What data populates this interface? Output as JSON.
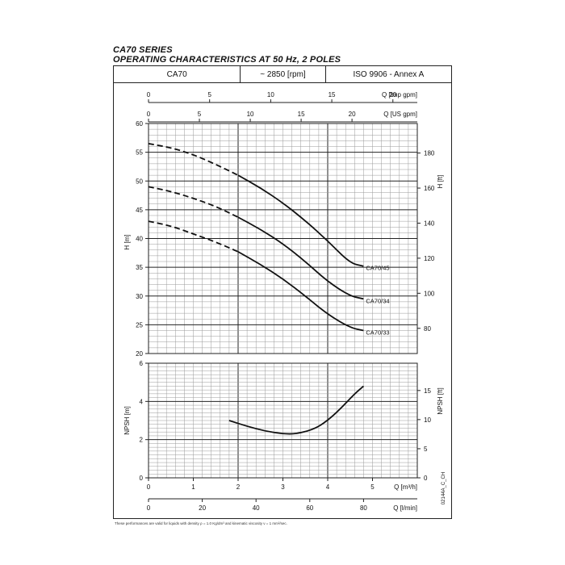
{
  "header": {
    "series": "CA70 SERIES",
    "subtitle": "OPERATING CHARACTERISTICS AT 50 Hz, 2 POLES",
    "cells": [
      "CA70",
      "~ 2850 [rpm]",
      "ISO 9906 - Annex A"
    ]
  },
  "footnote": "These performances are valid for liquids with density ρ = 1.0 Kg/dm³ and kinematic viscosity ν = 1 mm²/sec.",
  "code": "02144A_C_CH",
  "chart_data": [
    {
      "type": "line",
      "name": "head",
      "xlabel": "Q [m³/h]",
      "ylabel": "H [m]",
      "ylabel_right": "H [ft]",
      "top_axis_1_label": "Q [Imp gpm]",
      "top_axis_2_label": "Q [US gpm]",
      "xlim": [
        0,
        6
      ],
      "ylim": [
        20,
        60
      ],
      "y_ticks": [
        20,
        25,
        30,
        35,
        40,
        45,
        50,
        55,
        60
      ],
      "ft_ticks": [
        80,
        100,
        120,
        140,
        160,
        180
      ],
      "imp_gpm_ticks": [
        0,
        5,
        10,
        15,
        20
      ],
      "us_gpm_ticks": [
        0,
        5,
        10,
        15,
        20
      ],
      "series": [
        {
          "name": "CA70/45",
          "x": [
            0,
            0.5,
            1.0,
            1.5,
            2.0,
            2.5,
            3.0,
            3.5,
            4.0,
            4.5,
            4.8
          ],
          "y": [
            56.5,
            55.8,
            54.6,
            52.9,
            51.0,
            48.8,
            46.2,
            43.1,
            39.6,
            35.7,
            35.2
          ]
        },
        {
          "name": "CA70/34",
          "x": [
            0,
            0.5,
            1.0,
            1.5,
            2.0,
            2.5,
            3.0,
            3.5,
            4.0,
            4.5,
            4.8
          ],
          "y": [
            49.0,
            48.2,
            47.0,
            45.6,
            43.7,
            41.6,
            39.1,
            36.0,
            32.5,
            30.0,
            29.5
          ]
        },
        {
          "name": "CA70/33",
          "x": [
            0,
            0.5,
            1.0,
            1.5,
            2.0,
            2.5,
            3.0,
            3.5,
            4.0,
            4.5,
            4.8
          ],
          "y": [
            43.0,
            42.2,
            40.8,
            39.4,
            37.7,
            35.5,
            33.0,
            30.0,
            26.8,
            24.5,
            24.0
          ]
        }
      ],
      "dashed_until_x": 2.0
    },
    {
      "type": "line",
      "name": "npsh",
      "xlabel": "Q [m³/h]",
      "ylabel": "NPSH [m]",
      "ylabel_right": "NPSH [ft]",
      "bottom_axis_2_label": "Q [l/min]",
      "xlim": [
        0,
        6
      ],
      "ylim": [
        0,
        6
      ],
      "y_ticks": [
        0,
        2,
        4,
        6
      ],
      "x_ticks": [
        0,
        1,
        2,
        3,
        4,
        5
      ],
      "ft_ticks": [
        0,
        5,
        10,
        15
      ],
      "lmin_ticks": [
        0,
        20,
        40,
        60,
        80
      ],
      "series": [
        {
          "name": "NPSH",
          "x": [
            1.8,
            2.2,
            2.6,
            3.0,
            3.3,
            3.7,
            4.0,
            4.3,
            4.6,
            4.8
          ],
          "y": [
            3.0,
            2.7,
            2.45,
            2.3,
            2.3,
            2.55,
            3.0,
            3.65,
            4.4,
            4.8
          ]
        }
      ]
    }
  ]
}
